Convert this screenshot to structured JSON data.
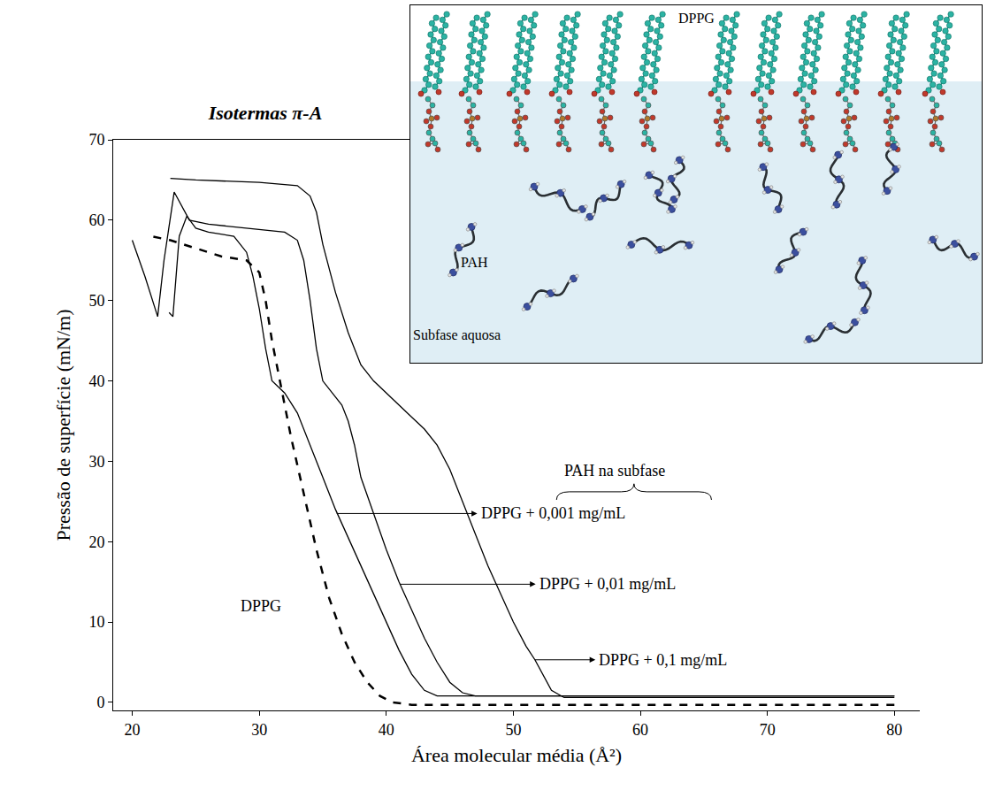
{
  "chart_data": {
    "type": "line",
    "title": "Isotermas π-A",
    "x_label": "Área molecular média (Å²)",
    "y_label": "Pressão de superfície (mN/m)",
    "xlim": [
      18.5,
      82
    ],
    "xticks": [
      20,
      30,
      40,
      50,
      60,
      70,
      80
    ],
    "ylim": [
      -1,
      70
    ],
    "yticks": [
      0,
      10,
      20,
      30,
      40,
      50,
      60,
      70
    ],
    "grid": false,
    "annotations": [
      "PAH na subfase"
    ],
    "series": [
      {
        "name": "DPPG",
        "color": "#000000",
        "line_style": "dashed",
        "x": [
          80,
          42,
          40.5,
          39.5,
          38.5,
          37.5,
          36.5,
          35.5,
          34.5,
          33.5,
          32.5,
          32,
          31.5,
          31,
          30.5,
          30,
          29,
          27,
          25,
          23,
          21.5
        ],
        "values": [
          -0.3,
          -0.3,
          0,
          0.8,
          2.5,
          5,
          8.5,
          13,
          19,
          26,
          33,
          37,
          41,
          45,
          50,
          53.5,
          55,
          55.5,
          56.5,
          57.5,
          58
        ]
      },
      {
        "name": "DPPG + 0,001 mg/mL",
        "color": "#000000",
        "line_style": "solid",
        "x": [
          80,
          44,
          43,
          42,
          41,
          40,
          39,
          38,
          37,
          36,
          35,
          34,
          33,
          32,
          31,
          30.5,
          30,
          29.5,
          29,
          28,
          26,
          25,
          24.3,
          23.7,
          23.2,
          22.9
        ],
        "values": [
          0.8,
          0.8,
          1.5,
          3.5,
          6.5,
          10,
          13.5,
          17,
          20.5,
          24,
          28,
          32,
          36,
          38.5,
          40,
          44,
          49,
          53,
          56,
          58,
          58.5,
          59,
          60.5,
          58,
          48,
          48.5
        ]
      },
      {
        "name": "DPPG + 0,01 mg/mL",
        "color": "#000000",
        "line_style": "solid",
        "x": [
          80,
          47,
          46,
          45,
          44,
          43,
          42,
          41,
          40,
          39,
          38,
          37.5,
          37,
          36.5,
          36,
          35,
          34.5,
          34,
          33.5,
          33,
          32,
          29,
          26,
          24.5,
          23.3,
          22.5,
          22,
          21,
          20
        ],
        "values": [
          0.8,
          0.8,
          1.2,
          2.5,
          5,
          8,
          11.5,
          15,
          19,
          23.5,
          28,
          32,
          35,
          37,
          38,
          40,
          44,
          50,
          55,
          57.5,
          58.5,
          59,
          59.5,
          60,
          63.5,
          55,
          48,
          53,
          57.5
        ]
      },
      {
        "name": "DPPG + 0,1 mg/mL",
        "color": "#000000",
        "line_style": "solid",
        "x": [
          80,
          54,
          53,
          52.5,
          51.7,
          51,
          50,
          49,
          48,
          47,
          46,
          45,
          44,
          43,
          42,
          41,
          40,
          39,
          38,
          37,
          36,
          35,
          34.5,
          34,
          33,
          30,
          25,
          23
        ],
        "values": [
          0.6,
          0.6,
          1.5,
          3,
          5.3,
          7,
          10,
          13.5,
          17,
          21,
          25,
          29,
          32,
          34,
          35.5,
          37,
          38.5,
          40,
          42,
          46,
          51,
          57,
          61,
          63,
          64.3,
          64.7,
          65,
          65.2
        ]
      }
    ]
  },
  "inset": {
    "lipid_label": "DPPG",
    "polymer_label": "PAH",
    "subphase_label": "Subfase aquosa"
  }
}
